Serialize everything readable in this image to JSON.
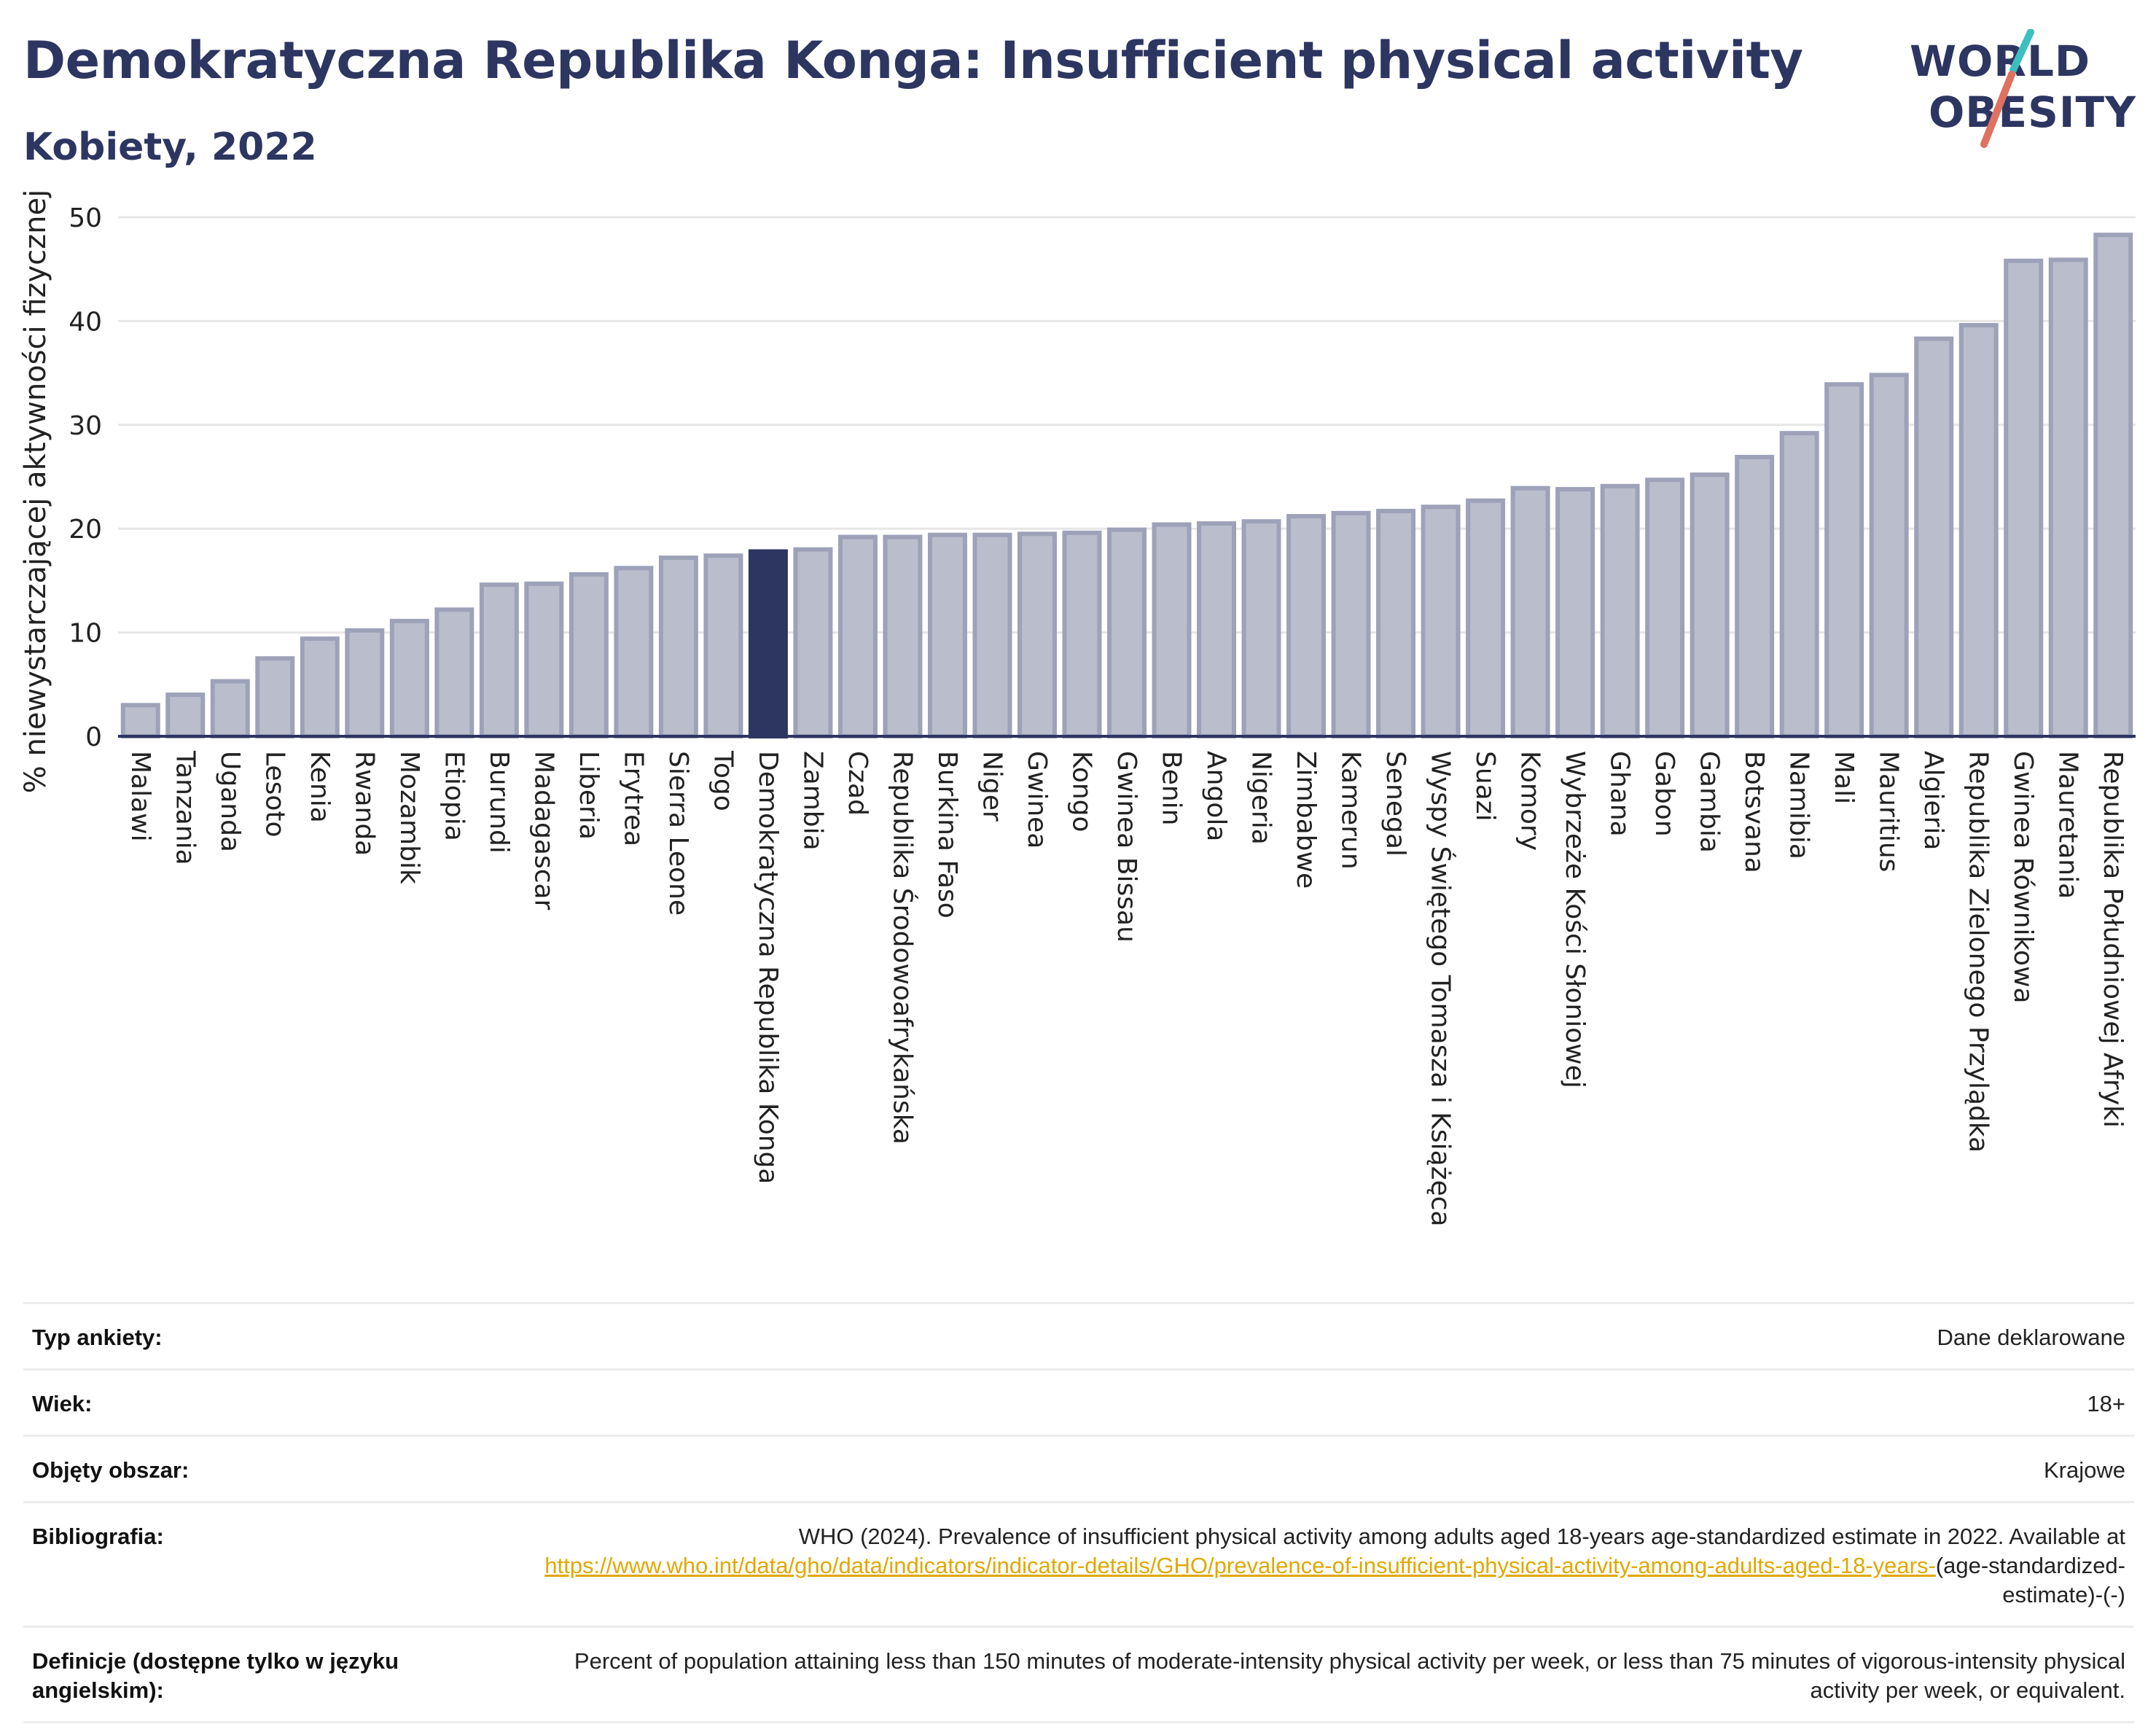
{
  "header": {
    "title": "Demokratyczna Republika Konga: Insufficient physical activity",
    "subtitle": "Kobiety, 2022"
  },
  "logo": {
    "line1": "WORLD",
    "line2": "OBESITY"
  },
  "colors": {
    "bar": "#b9bdcc",
    "bar_border": "#9da2b8",
    "highlight": "#2d3561",
    "title": "#2d3561",
    "accent_red": "#e07060",
    "accent_teal": "#3bbfbf"
  },
  "chart_data": {
    "type": "bar",
    "ylabel": "% niewystarczającej aktywności fizycznej",
    "ylim": [
      0,
      50
    ],
    "yticks": [
      0,
      10,
      20,
      30,
      40,
      50
    ],
    "grid": true,
    "highlight": "Demokratyczna Republika Konga",
    "categories": [
      "Malawi",
      "Tanzania",
      "Uganda",
      "Lesoto",
      "Kenia",
      "Rwanda",
      "Mozambik",
      "Etiopia",
      "Burundi",
      "Madagascar",
      "Liberia",
      "Erytrea",
      "Sierra Leone",
      "Togo",
      "Demokratyczna Republika Konga",
      "Zambia",
      "Czad",
      "Republika Środowoafrykańska",
      "Burkina Faso",
      "Niger",
      "Gwinea",
      "Kongo",
      "Gwinea Bissau",
      "Benin",
      "Angola",
      "Nigeria",
      "Zimbabwe",
      "Kamerun",
      "Senegal",
      "Wyspy Świętego Tomasza i Książęca",
      "Suazi",
      "Komory",
      "Wybrzeże Kości Słoniowej",
      "Ghana",
      "Gabon",
      "Gambia",
      "Botsvana",
      "Namibia",
      "Mali",
      "Mauritius",
      "Algieria",
      "Republika Zielonego Przylądka",
      "Gwinea Równikowa",
      "Mauretania",
      "Republika Południowej Afryki"
    ],
    "values": [
      3.0,
      4.0,
      5.3,
      7.5,
      9.4,
      10.2,
      11.1,
      12.2,
      14.6,
      14.7,
      15.6,
      16.2,
      17.2,
      17.4,
      17.8,
      18.0,
      19.2,
      19.2,
      19.4,
      19.4,
      19.5,
      19.6,
      19.9,
      20.4,
      20.5,
      20.7,
      21.2,
      21.5,
      21.7,
      22.1,
      22.7,
      23.9,
      23.8,
      24.1,
      24.7,
      25.2,
      26.9,
      29.2,
      33.9,
      34.8,
      38.3,
      39.6,
      45.8,
      45.9,
      48.3
    ]
  },
  "meta": [
    {
      "key": "Typ ankiety:",
      "value": "Dane deklarowane"
    },
    {
      "key": "Wiek:",
      "value": "18+"
    },
    {
      "key": "Objęty obszar:",
      "value": "Krajowe"
    },
    {
      "key": "Bibliografia:",
      "text1": "WHO (2024). Prevalence of insufficient physical activity among adults aged 18-years age-standardized estimate in 2022. Available at",
      "link": "https://www.who.int/data/gho/data/indicators/indicator-details/GHO/prevalence-of-insufficient-physical-activity-among-adults-aged-18-years-",
      "text2": "(age-standardized-estimate)-(-)"
    },
    {
      "key": "Definicje (dostępne tylko w języku angielskim):",
      "value": "Percent of population attaining less than 150 minutes of moderate-intensity physical activity per week, or less than 75 minutes of vigorous-intensity physical activity per week, or equivalent."
    }
  ]
}
